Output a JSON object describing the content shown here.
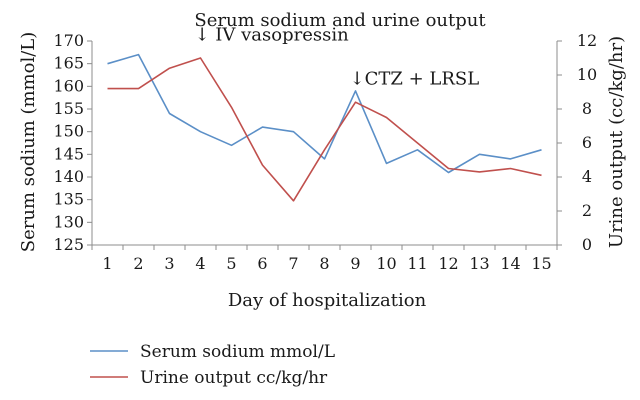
{
  "chart_data": {
    "type": "line",
    "title": "Serum sodium and urine output",
    "xlabel": "Day of hospitalization",
    "ylabel_left": "Serum sodium (mmol/L)",
    "ylabel_right": "Urine output (cc/kg/hr)",
    "x": [
      1,
      2,
      3,
      4,
      5,
      6,
      7,
      8,
      9,
      10,
      11,
      12,
      13,
      14,
      15
    ],
    "ylim_left": [
      125,
      170
    ],
    "yticks_left": [
      125,
      130,
      135,
      140,
      145,
      150,
      155,
      160,
      165,
      170
    ],
    "ylim_right": [
      0,
      12
    ],
    "yticks_right": [
      0,
      2,
      4,
      6,
      8,
      10,
      12
    ],
    "grid": false,
    "legend_position": "bottom-left",
    "series": [
      {
        "name": "Serum sodium mmol/L",
        "axis": "left",
        "color": "#5b8fc7",
        "values": [
          165,
          167,
          154,
          150,
          147,
          151,
          150,
          144,
          159,
          143,
          146,
          141,
          145,
          144,
          146
        ]
      },
      {
        "name": "Urine output cc/kg/hr",
        "axis": "right",
        "color": "#c0504d",
        "values": [
          9.2,
          9.2,
          10.4,
          11.0,
          8.1,
          4.7,
          2.6,
          5.6,
          8.4,
          7.5,
          6.0,
          4.5,
          4.3,
          4.5,
          4.1
        ]
      }
    ],
    "annotations": [
      {
        "text": "↓ IV vasopressin",
        "x": 4,
        "y_right": 11.1
      },
      {
        "text": "↓CTZ + LRSL",
        "x": 9,
        "y_right": 8.5
      }
    ]
  }
}
